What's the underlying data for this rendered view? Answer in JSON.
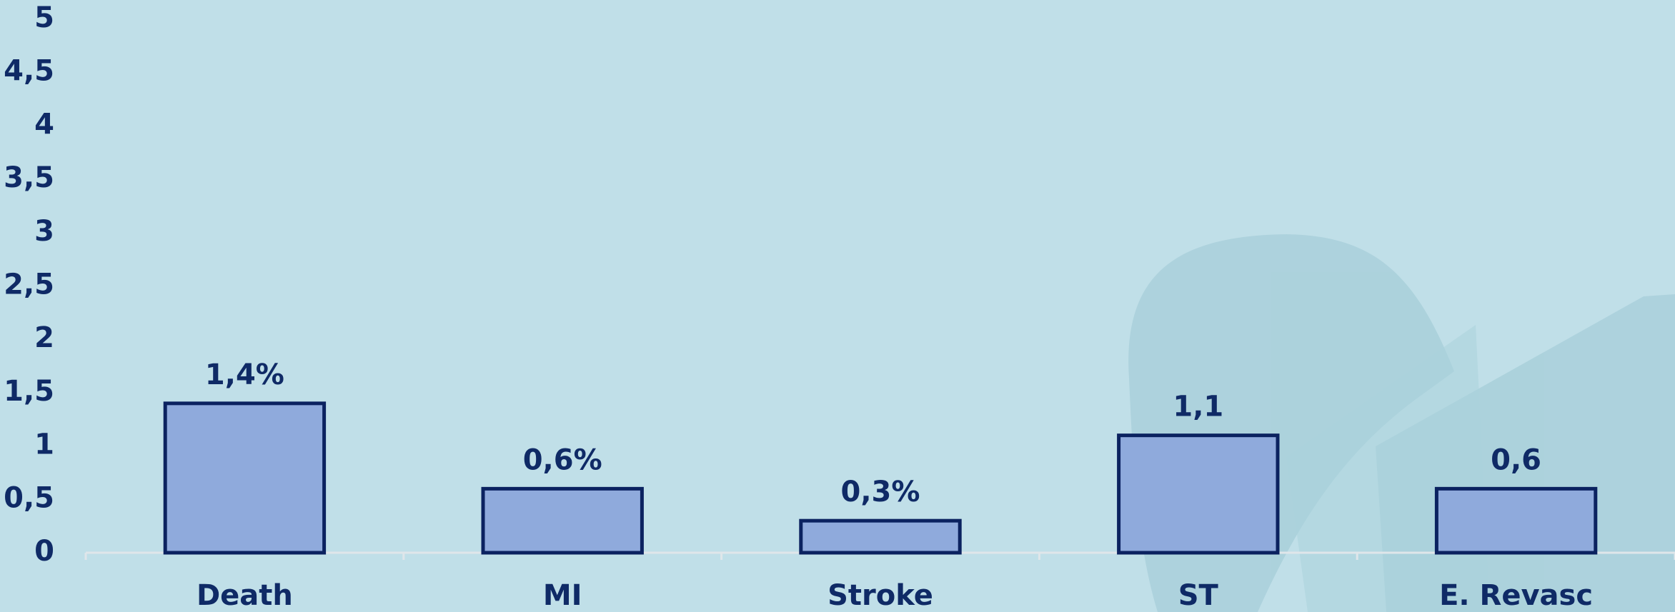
{
  "chart_data": {
    "type": "bar",
    "categories": [
      "Death",
      "MI",
      "Stroke",
      "ST",
      "E. Revasc"
    ],
    "values": [
      1.4,
      0.6,
      0.3,
      1.1,
      0.6
    ],
    "value_labels": [
      "1,4%",
      "0,6%",
      "0,3%",
      "1,1",
      "0,6"
    ],
    "color": "#8faadc",
    "ylim": [
      0,
      5
    ],
    "yticks": [
      0,
      {
        "value": 0.5,
        "label": "0,5"
      },
      1,
      {
        "value": 1.5,
        "label": "1,5"
      },
      2,
      {
        "value": 2.5,
        "label": "2,5"
      },
      3,
      {
        "value": 3.5,
        "label": "3,5"
      },
      4,
      {
        "value": 4.5,
        "label": "4,5"
      },
      5
    ],
    "grid": false
  }
}
